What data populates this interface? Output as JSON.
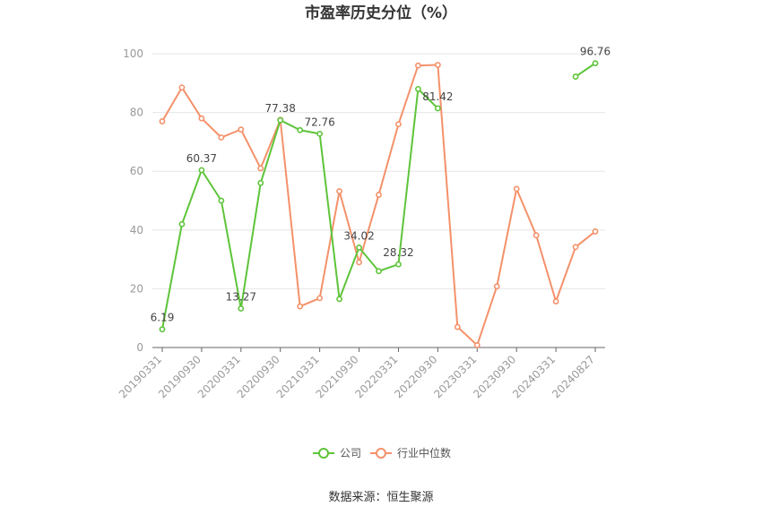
{
  "colors": {
    "company": "#5ec43a",
    "industry": "#f4916a",
    "grid": "#e6e6e6",
    "axis": "#666666"
  },
  "footer": {
    "source": "数据来源：恒生聚源"
  },
  "chart_data": {
    "type": "line",
    "title": "市盈率历史分位（%）",
    "xlabel": "",
    "ylabel": "",
    "ylim": [
      0,
      100
    ],
    "yticks": [
      0,
      20,
      40,
      60,
      80,
      100
    ],
    "grid": true,
    "legend_position": "bottom",
    "x": [
      "20190331",
      "20190630",
      "20190930",
      "20191231",
      "20200331",
      "20200630",
      "20200930",
      "20201231",
      "20210331",
      "20210630",
      "20210930",
      "20211231",
      "20220331",
      "20220630",
      "20220930",
      "20221231",
      "20230331",
      "20230630",
      "20230930",
      "20231231",
      "20240331",
      "20240630",
      "20240827"
    ],
    "x_tick_labels": [
      "20190331",
      "20190930",
      "20200331",
      "20200930",
      "20210331",
      "20210930",
      "20220331",
      "20220930",
      "20230331",
      "20230930",
      "20240331",
      "20240827"
    ],
    "series": [
      {
        "name": "公司",
        "values": [
          6.19,
          42,
          60.37,
          50,
          13.27,
          56,
          77.38,
          74,
          72.76,
          16.5,
          34.02,
          26,
          28.32,
          88,
          81.42,
          null,
          null,
          null,
          null,
          null,
          null,
          92.2,
          96.76
        ],
        "labels": {
          "0": "6.19",
          "2": "60.37",
          "4": "13.27",
          "6": "77.38",
          "8": "72.76",
          "10": "34.02",
          "12": "28.32",
          "14": "81.42",
          "22": "96.76"
        }
      },
      {
        "name": "行业中位数",
        "values": [
          77,
          88.5,
          78,
          71.5,
          74.2,
          61,
          77.5,
          14,
          16.8,
          53.2,
          29,
          52,
          76,
          96,
          96.2,
          7,
          0.8,
          20.8,
          54,
          38.2,
          15.7,
          34.2,
          39.5
        ]
      }
    ]
  }
}
